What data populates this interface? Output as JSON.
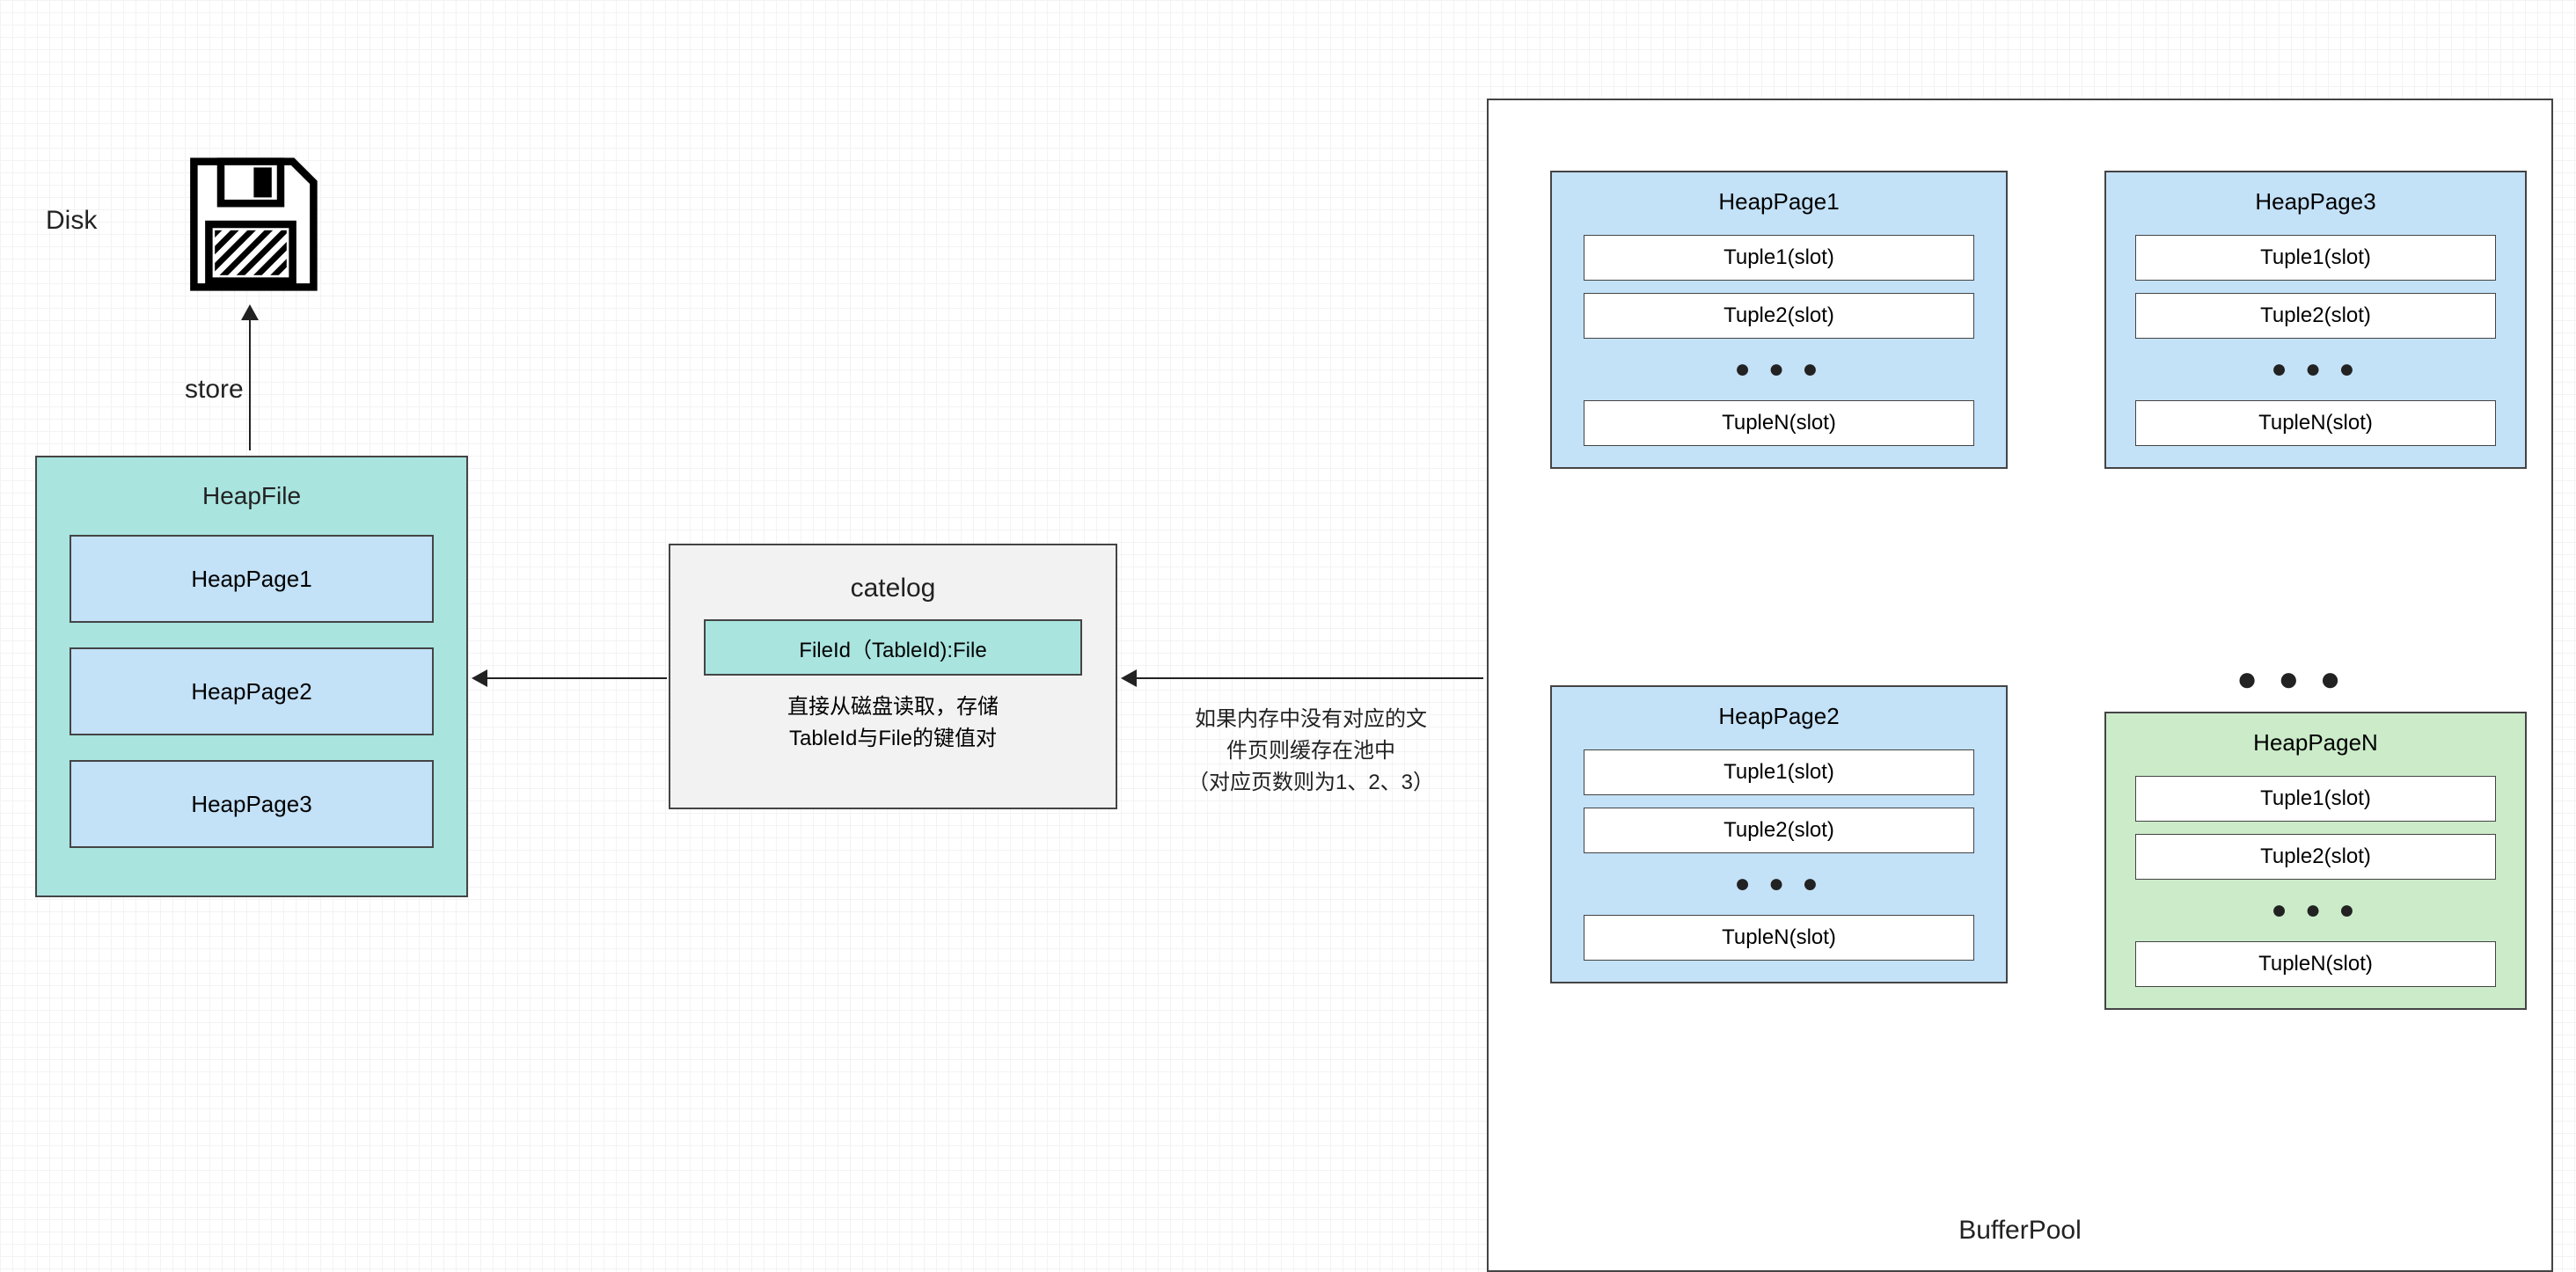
{
  "disk": {
    "label": "Disk"
  },
  "store_arrow": {
    "label": "store"
  },
  "heapfile": {
    "title": "HeapFile",
    "bg_color": "#a9e4df",
    "pages": [
      "HeapPage1",
      "HeapPage2",
      "HeapPage3"
    ],
    "page_bg": "#c3e1f7"
  },
  "catelog": {
    "title": "catelog",
    "bg_color": "#f2f2f2",
    "entry": "FileId（TableId):File",
    "entry_bg": "#a9e4df",
    "desc_line1": "直接从磁盘读取，存储",
    "desc_line2": "TableId与File的键值对"
  },
  "arrow2_note": {
    "line1": "如果内存中没有对应的文",
    "line2": "件页则缓存在池中",
    "line3": "（对应页数则为1、2、3）"
  },
  "bufferpool": {
    "title": "BufferPool",
    "bg_color": "#ffffff",
    "blue_bg": "#c3e1f7",
    "green_bg": "#cbebc9",
    "pages": [
      {
        "name": "HeapPage1",
        "color": "blue",
        "tuples": [
          "Tuple1(slot)",
          "Tuple2(slot)",
          "TupleN(slot)"
        ]
      },
      {
        "name": "HeapPage3",
        "color": "blue",
        "tuples": [
          "Tuple1(slot)",
          "Tuple2(slot)",
          "TupleN(slot)"
        ]
      },
      {
        "name": "HeapPage2",
        "color": "blue",
        "tuples": [
          "Tuple1(slot)",
          "Tuple2(slot)",
          "TupleN(slot)"
        ]
      },
      {
        "name": "HeapPageN",
        "color": "green",
        "tuples": [
          "Tuple1(slot)",
          "Tuple2(slot)",
          "TupleN(slot)"
        ]
      }
    ],
    "ellipsis": "● ● ●"
  },
  "colors": {
    "border": "#444444",
    "text": "#222222",
    "grid_minor": "#f3f3f3",
    "grid_major": "#ededed"
  }
}
